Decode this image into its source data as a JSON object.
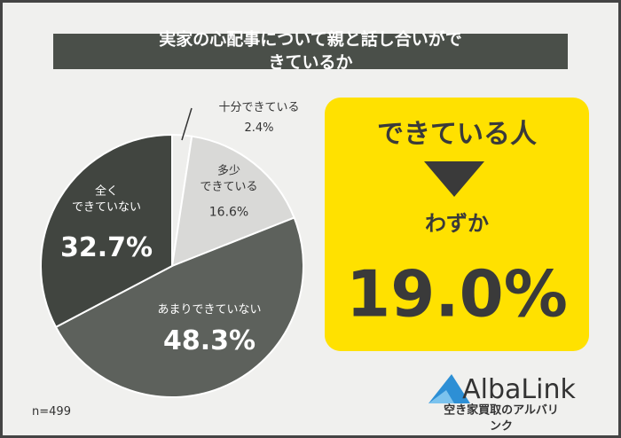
{
  "chart_data": {
    "type": "pie",
    "title": "実家の心配事について親と話し合いができているか",
    "categories": [
      "十分できている",
      "多少\nできている",
      "あまりできていない",
      "全く\nできていない"
    ],
    "values": [
      2.4,
      16.6,
      48.3,
      32.7
    ],
    "value_labels": [
      "2.4%",
      "16.6%",
      "48.3%",
      "32.7%"
    ],
    "colors": [
      "#eeeeec",
      "#d9d9d7",
      "#5d615c",
      "#414540"
    ],
    "note": "n=499"
  },
  "callout": {
    "headline": "できている人",
    "subtext": "わずか",
    "value": "19.0%"
  },
  "logo": {
    "name": "AlbaLink",
    "tagline": "空き家買取のアルバリンク"
  }
}
